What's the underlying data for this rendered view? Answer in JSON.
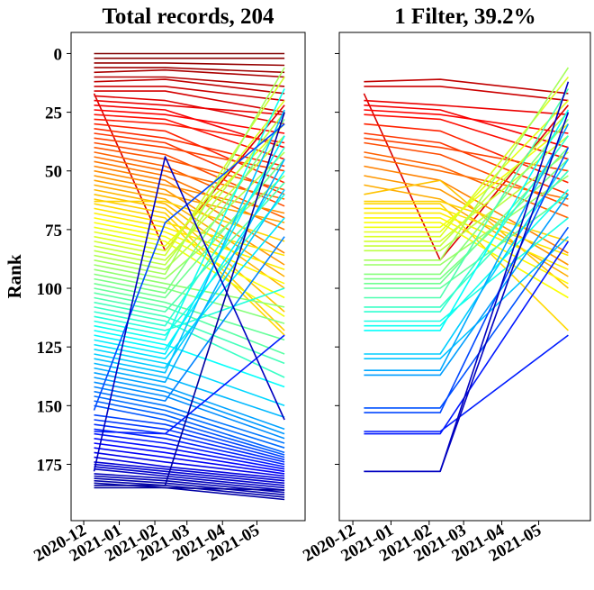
{
  "chart_data": [
    {
      "type": "line",
      "title": "Total records, 204",
      "ylabel": "Rank",
      "xlabel": "",
      "ylim": [
        199,
        -9
      ],
      "y_inverted": true,
      "yticks": [
        0,
        25,
        50,
        75,
        100,
        125,
        150,
        175
      ],
      "x_dates": [
        "2020-12-10",
        "2021-02-10",
        "2021-05-25"
      ],
      "xlim": [
        "2020-11-20",
        "2021-06-12"
      ],
      "xticks": [
        "2020-12",
        "2021-01",
        "2021-02",
        "2021-03",
        "2021-04",
        "2021-05"
      ],
      "colormap": "jet",
      "grid": false,
      "series_note_values": "each line = one record's rank on the three dates; color by rank on the first date",
      "series": [
        {
          "values": [
            0,
            0,
            0
          ]
        },
        {
          "values": [
            2,
            2,
            2
          ]
        },
        {
          "values": [
            4,
            4,
            5
          ]
        },
        {
          "values": [
            6,
            6,
            8
          ]
        },
        {
          "values": [
            8,
            7,
            10
          ]
        },
        {
          "values": [
            10,
            10,
            14
          ]
        },
        {
          "values": [
            12,
            11,
            17
          ]
        },
        {
          "values": [
            14,
            14,
            20
          ]
        },
        {
          "values": [
            16,
            16,
            25
          ]
        },
        {
          "values": [
            17,
            84,
            22
          ]
        },
        {
          "values": [
            18,
            20,
            30
          ]
        },
        {
          "values": [
            20,
            22,
            26
          ]
        },
        {
          "values": [
            22,
            24,
            40
          ]
        },
        {
          "values": [
            24,
            26,
            34
          ]
        },
        {
          "values": [
            26,
            28,
            45
          ]
        },
        {
          "values": [
            28,
            30,
            38
          ]
        },
        {
          "values": [
            30,
            33,
            55
          ]
        },
        {
          "values": [
            32,
            36,
            48
          ]
        },
        {
          "values": [
            34,
            38,
            60
          ]
        },
        {
          "values": [
            36,
            40,
            50
          ]
        },
        {
          "values": [
            38,
            43,
            65
          ]
        },
        {
          "values": [
            40,
            45,
            58
          ]
        },
        {
          "values": [
            42,
            48,
            70
          ]
        },
        {
          "values": [
            44,
            50,
            62
          ]
        },
        {
          "values": [
            46,
            52,
            75
          ]
        },
        {
          "values": [
            48,
            54,
            85
          ]
        },
        {
          "values": [
            50,
            56,
            68
          ]
        },
        {
          "values": [
            52,
            58,
            90
          ]
        },
        {
          "values": [
            54,
            60,
            72
          ]
        },
        {
          "values": [
            56,
            62,
            95
          ]
        },
        {
          "values": [
            58,
            64,
            100
          ]
        },
        {
          "values": [
            60,
            66,
            110
          ]
        },
        {
          "values": [
            62,
            68,
            118
          ]
        },
        {
          "values": [
            63,
            63,
            80
          ]
        },
        {
          "values": [
            64,
            70,
            120
          ]
        },
        {
          "values": [
            66,
            72,
            86
          ]
        },
        {
          "values": [
            68,
            74,
            92
          ]
        },
        {
          "values": [
            70,
            76,
            98
          ]
        },
        {
          "values": [
            72,
            78,
            104
          ]
        },
        {
          "values": [
            74,
            80,
            112
          ]
        },
        {
          "values": [
            76,
            82,
            30
          ]
        },
        {
          "values": [
            78,
            84,
            20
          ]
        },
        {
          "values": [
            80,
            86,
            10
          ]
        },
        {
          "values": [
            82,
            88,
            35
          ]
        },
        {
          "values": [
            84,
            90,
            25
          ]
        },
        {
          "values": [
            86,
            92,
            42
          ]
        },
        {
          "values": [
            88,
            94,
            6
          ]
        },
        {
          "values": [
            90,
            96,
            52
          ]
        },
        {
          "values": [
            92,
            98,
            108
          ]
        },
        {
          "values": [
            94,
            100,
            115
          ]
        },
        {
          "values": [
            96,
            102,
            28
          ]
        },
        {
          "values": [
            98,
            104,
            45
          ]
        },
        {
          "values": [
            100,
            106,
            122
          ]
        },
        {
          "values": [
            102,
            108,
            128
          ]
        },
        {
          "values": [
            104,
            110,
            55
          ]
        },
        {
          "values": [
            106,
            112,
            132
          ]
        },
        {
          "values": [
            108,
            114,
            138
          ]
        },
        {
          "values": [
            110,
            116,
            40
          ]
        },
        {
          "values": [
            112,
            118,
            100
          ]
        },
        {
          "values": [
            114,
            120,
            60
          ]
        },
        {
          "values": [
            116,
            122,
            15
          ]
        },
        {
          "values": [
            118,
            124,
            142
          ]
        },
        {
          "values": [
            120,
            126,
            50
          ]
        },
        {
          "values": [
            122,
            128,
            35
          ]
        },
        {
          "values": [
            124,
            130,
            70
          ]
        },
        {
          "values": [
            126,
            132,
            150
          ]
        },
        {
          "values": [
            128,
            134,
            58
          ]
        },
        {
          "values": [
            130,
            136,
            24
          ]
        },
        {
          "values": [
            132,
            138,
            155
          ]
        },
        {
          "values": [
            134,
            140,
            45
          ]
        },
        {
          "values": [
            136,
            142,
            160
          ]
        },
        {
          "values": [
            138,
            144,
            162
          ]
        },
        {
          "values": [
            140,
            146,
            164
          ]
        },
        {
          "values": [
            142,
            148,
            78
          ]
        },
        {
          "values": [
            144,
            150,
            166
          ]
        },
        {
          "values": [
            146,
            152,
            168
          ]
        },
        {
          "values": [
            148,
            154,
            170
          ]
        },
        {
          "values": [
            150,
            156,
            171
          ]
        },
        {
          "values": [
            152,
            72,
            30
          ]
        },
        {
          "values": [
            154,
            158,
            172
          ]
        },
        {
          "values": [
            156,
            160,
            173
          ]
        },
        {
          "values": [
            158,
            162,
            174
          ]
        },
        {
          "values": [
            160,
            164,
            175
          ]
        },
        {
          "values": [
            161,
            162,
            120
          ]
        },
        {
          "values": [
            162,
            166,
            176
          ]
        },
        {
          "values": [
            164,
            168,
            177
          ]
        },
        {
          "values": [
            166,
            170,
            178
          ]
        },
        {
          "values": [
            168,
            172,
            179
          ]
        },
        {
          "values": [
            170,
            174,
            180
          ]
        },
        {
          "values": [
            172,
            176,
            181
          ]
        },
        {
          "values": [
            174,
            177,
            182
          ]
        },
        {
          "values": [
            175,
            178,
            183
          ]
        },
        {
          "values": [
            176,
            179,
            184
          ]
        },
        {
          "values": [
            177,
            180,
            185
          ]
        },
        {
          "values": [
            178,
            44,
            156
          ]
        },
        {
          "values": [
            179,
            181,
            186
          ]
        },
        {
          "values": [
            180,
            182,
            187
          ]
        },
        {
          "values": [
            181,
            183,
            188
          ]
        },
        {
          "values": [
            182,
            184,
            189
          ]
        },
        {
          "values": [
            183,
            185,
            190
          ]
        },
        {
          "values": [
            184,
            184,
            25
          ]
        },
        {
          "values": [
            185,
            185,
            186
          ]
        }
      ]
    },
    {
      "type": "line",
      "title": "1 Filter, 39.2%",
      "ylabel": "",
      "xlabel": "",
      "ylim": [
        199,
        -9
      ],
      "y_inverted": true,
      "yticks": [
        0,
        25,
        50,
        75,
        100,
        125,
        150,
        175
      ],
      "x_dates": [
        "2020-12-10",
        "2021-02-10",
        "2021-05-25"
      ],
      "xlim": [
        "2020-11-20",
        "2021-06-12"
      ],
      "xticks": [
        "2020-12",
        "2021-01",
        "2021-02",
        "2021-03",
        "2021-04",
        "2021-05"
      ],
      "colormap": "jet",
      "grid": false,
      "series": [
        {
          "values": [
            12,
            11,
            17
          ]
        },
        {
          "values": [
            14,
            14,
            20
          ]
        },
        {
          "values": [
            17,
            88,
            22
          ]
        },
        {
          "values": [
            20,
            22,
            26
          ]
        },
        {
          "values": [
            22,
            24,
            40
          ]
        },
        {
          "values": [
            24,
            26,
            34
          ]
        },
        {
          "values": [
            26,
            28,
            45
          ]
        },
        {
          "values": [
            30,
            33,
            55
          ]
        },
        {
          "values": [
            34,
            38,
            60
          ]
        },
        {
          "values": [
            36,
            40,
            50
          ]
        },
        {
          "values": [
            38,
            43,
            65
          ]
        },
        {
          "values": [
            42,
            48,
            70
          ]
        },
        {
          "values": [
            44,
            50,
            62
          ]
        },
        {
          "values": [
            48,
            54,
            85
          ]
        },
        {
          "values": [
            52,
            58,
            90
          ]
        },
        {
          "values": [
            56,
            62,
            95
          ]
        },
        {
          "values": [
            60,
            54,
            100
          ]
        },
        {
          "values": [
            63,
            63,
            80
          ]
        },
        {
          "values": [
            64,
            64,
            118
          ]
        },
        {
          "values": [
            66,
            66,
            86
          ]
        },
        {
          "values": [
            68,
            68,
            92
          ]
        },
        {
          "values": [
            70,
            70,
            98
          ]
        },
        {
          "values": [
            72,
            72,
            104
          ]
        },
        {
          "values": [
            74,
            74,
            30
          ]
        },
        {
          "values": [
            76,
            76,
            20
          ]
        },
        {
          "values": [
            78,
            78,
            10
          ]
        },
        {
          "values": [
            80,
            80,
            35
          ]
        },
        {
          "values": [
            82,
            82,
            25
          ]
        },
        {
          "values": [
            84,
            84,
            42
          ]
        },
        {
          "values": [
            88,
            88,
            6
          ]
        },
        {
          "values": [
            90,
            90,
            52
          ]
        },
        {
          "values": [
            94,
            94,
            28
          ]
        },
        {
          "values": [
            96,
            96,
            45
          ]
        },
        {
          "values": [
            98,
            98,
            40
          ]
        },
        {
          "values": [
            100,
            100,
            60
          ]
        },
        {
          "values": [
            104,
            104,
            15
          ]
        },
        {
          "values": [
            108,
            108,
            50
          ]
        },
        {
          "values": [
            110,
            110,
            35
          ]
        },
        {
          "values": [
            114,
            114,
            70
          ]
        },
        {
          "values": [
            116,
            116,
            58
          ]
        },
        {
          "values": [
            118,
            118,
            24
          ]
        },
        {
          "values": [
            128,
            128,
            45
          ]
        },
        {
          "values": [
            130,
            130,
            78
          ]
        },
        {
          "values": [
            135,
            135,
            30
          ]
        },
        {
          "values": [
            137,
            137,
            60
          ]
        },
        {
          "values": [
            151,
            151,
            74
          ]
        },
        {
          "values": [
            153,
            153,
            40
          ]
        },
        {
          "values": [
            161,
            161,
            120
          ]
        },
        {
          "values": [
            162,
            162,
            80
          ]
        },
        {
          "values": [
            178,
            178,
            25
          ]
        },
        {
          "values": [
            178,
            178,
            12
          ]
        }
      ]
    }
  ]
}
